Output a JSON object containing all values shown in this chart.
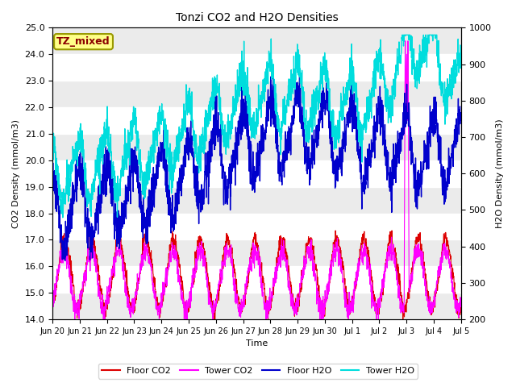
{
  "title": "Tonzi CO2 and H2O Densities",
  "xlabel": "Time",
  "ylabel_left": "CO2 Density (mmol/m3)",
  "ylabel_right": "H2O Density (mmol/m3)",
  "ylim_left": [
    14.0,
    25.0
  ],
  "ylim_right": [
    200,
    1000
  ],
  "annotation_text": "TZ_mixed",
  "annotation_color": "#8B0000",
  "annotation_bg": "#FFFF88",
  "annotation_border": "#999900",
  "floor_co2_color": "#DD0000",
  "tower_co2_color": "#FF00FF",
  "floor_h2o_color": "#0000CC",
  "tower_h2o_color": "#00DDDD",
  "background_color": "#FFFFFF",
  "band_color": "#EBEBEB",
  "legend_labels": [
    "Floor CO2",
    "Tower CO2",
    "Floor H2O",
    "Tower H2O"
  ],
  "yticks_left": [
    14.0,
    15.0,
    16.0,
    17.0,
    18.0,
    19.0,
    20.0,
    21.0,
    22.0,
    23.0,
    24.0,
    25.0
  ],
  "yticks_right": [
    200,
    300,
    400,
    500,
    600,
    700,
    800,
    900,
    1000
  ],
  "xtick_labels": [
    "Jun 20",
    "Jun 21",
    "Jun 22",
    "Jun 23",
    "Jun 24",
    "Jun 25",
    "Jun 26",
    "Jun 27",
    "Jun 28",
    "Jun 29",
    "Jun 30",
    "Jul 1",
    "Jul 2",
    "Jul 3",
    "Jul 4",
    "Jul 5"
  ],
  "n_points": 2000,
  "seed": 17
}
